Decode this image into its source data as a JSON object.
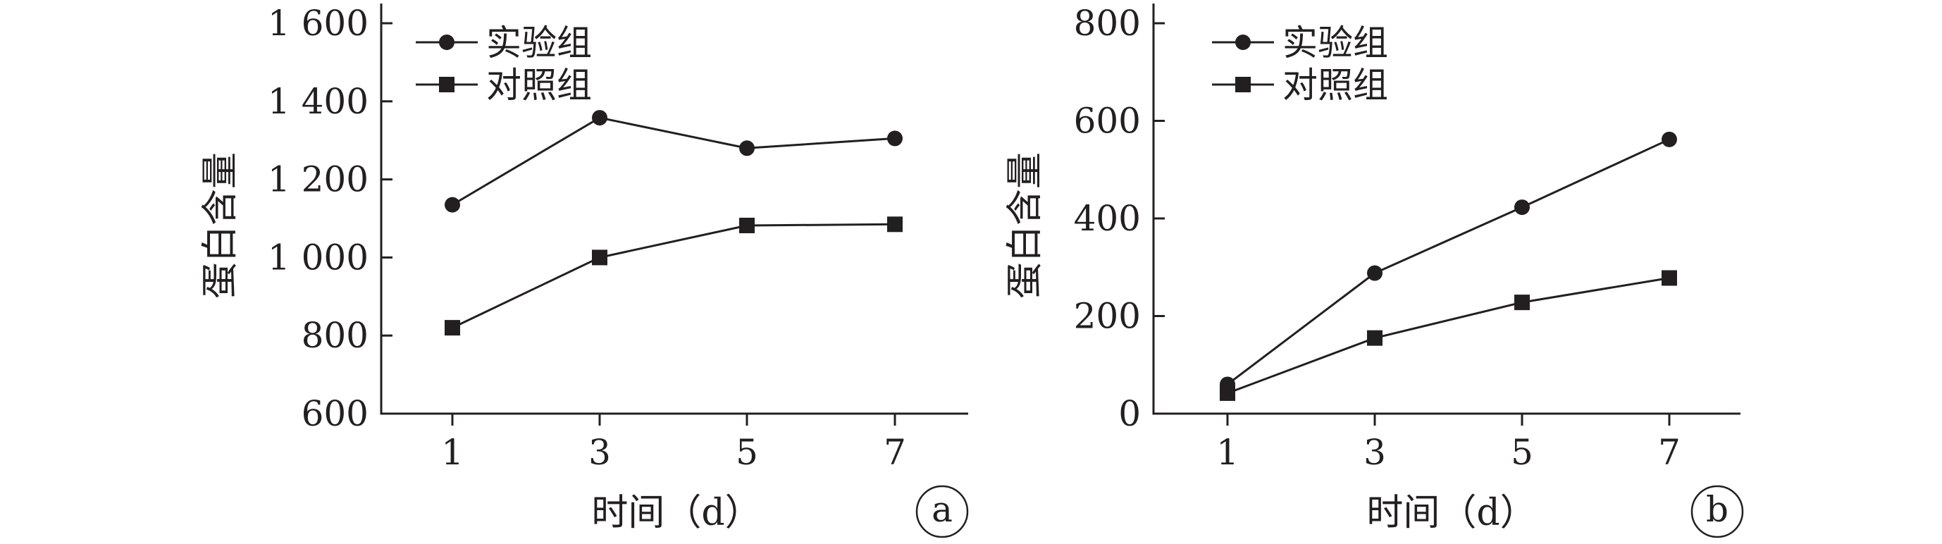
{
  "chart_data": [
    {
      "panel": "a",
      "type": "line",
      "x": [
        1,
        3,
        5,
        7
      ],
      "xticks": [
        "1",
        "3",
        "5",
        "7"
      ],
      "yticks": [
        "600",
        "800",
        "1 000",
        "1 200",
        "1 400",
        "1 600"
      ],
      "ylim": [
        600,
        1600
      ],
      "xlabel": "时间（d）",
      "ylabel": "蛋白含量",
      "legend": "top-left",
      "grid": false,
      "series": [
        {
          "name": "实验组",
          "marker": "circle",
          "values": [
            1135,
            1358,
            1280,
            1305
          ]
        },
        {
          "name": "对照组",
          "marker": "square",
          "values": [
            820,
            1000,
            1082,
            1085
          ]
        }
      ]
    },
    {
      "panel": "b",
      "type": "line",
      "x": [
        1,
        3,
        5,
        7
      ],
      "xticks": [
        "1",
        "3",
        "5",
        "7"
      ],
      "yticks": [
        "0",
        "200",
        "400",
        "600",
        "800"
      ],
      "ylim": [
        0,
        800
      ],
      "xlabel": "时间（d）",
      "ylabel": "蛋白含量",
      "legend": "top-left",
      "grid": false,
      "series": [
        {
          "name": "实验组",
          "marker": "circle",
          "values": [
            60,
            288,
            423,
            562
          ]
        },
        {
          "name": "对照组",
          "marker": "square",
          "values": [
            42,
            155,
            228,
            278
          ]
        }
      ]
    }
  ]
}
